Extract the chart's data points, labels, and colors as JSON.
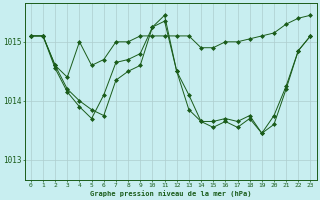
{
  "title": "Graphe pression niveau de la mer (hPa)",
  "bg_color": "#c8eef0",
  "line_color": "#1a5c1a",
  "marker_color": "#1a5c1a",
  "grid_color": "#aecece",
  "xlim": [
    -0.5,
    23.5
  ],
  "ylim": [
    1012.65,
    1015.65
  ],
  "yticks": [
    1013,
    1014,
    1015
  ],
  "xticks": [
    0,
    1,
    2,
    3,
    4,
    5,
    6,
    7,
    8,
    9,
    10,
    11,
    12,
    13,
    14,
    15,
    16,
    17,
    18,
    19,
    20,
    21,
    22,
    23
  ],
  "series": [
    {
      "x": [
        0,
        1,
        2,
        3,
        4,
        5,
        6,
        7,
        8,
        9,
        10,
        11,
        12,
        13,
        14,
        15,
        16,
        17,
        18,
        19,
        20,
        21,
        22,
        23
      ],
      "y": [
        1015.1,
        1015.1,
        1014.6,
        1014.4,
        1015.0,
        1014.6,
        1014.7,
        1015.0,
        1015.0,
        1015.1,
        1015.1,
        1015.1,
        1015.1,
        1015.1,
        1014.9,
        1014.9,
        1015.0,
        1015.0,
        1015.05,
        1015.1,
        1015.15,
        1015.3,
        1015.4,
        1015.45
      ]
    },
    {
      "x": [
        0,
        1,
        2,
        3,
        4,
        5,
        6,
        7,
        8,
        9,
        10,
        11,
        12,
        13,
        14,
        15,
        16,
        17,
        18,
        19,
        20,
        21,
        22,
        23
      ],
      "y": [
        1015.1,
        1015.1,
        1014.6,
        1014.2,
        1014.0,
        1013.85,
        1013.75,
        1014.35,
        1014.5,
        1014.6,
        1015.25,
        1015.35,
        1014.5,
        1013.85,
        1013.65,
        1013.55,
        1013.65,
        1013.55,
        1013.7,
        1013.45,
        1013.6,
        1014.2,
        1014.85,
        1015.1
      ]
    },
    {
      "x": [
        0,
        1,
        2,
        3,
        4,
        5,
        6,
        7,
        8,
        9,
        10,
        11,
        12,
        13,
        14,
        15,
        16,
        17,
        18,
        19,
        20,
        21,
        22,
        23
      ],
      "y": [
        1015.1,
        1015.1,
        1014.55,
        1014.15,
        1013.9,
        1013.7,
        1014.1,
        1014.65,
        1014.7,
        1014.8,
        1015.25,
        1015.45,
        1014.5,
        1014.1,
        1013.65,
        1013.65,
        1013.7,
        1013.65,
        1013.75,
        1013.45,
        1013.75,
        1014.25,
        1014.85,
        1015.1
      ]
    }
  ]
}
